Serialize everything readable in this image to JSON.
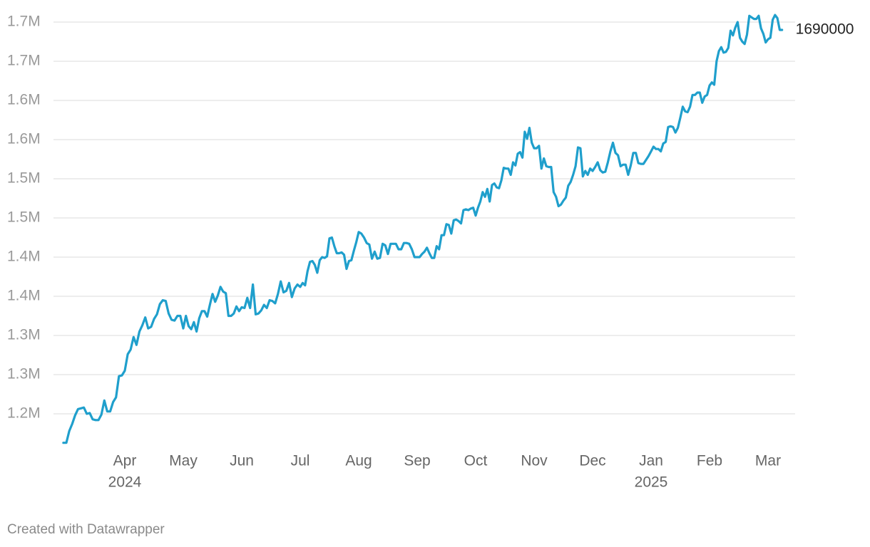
{
  "chart_data": {
    "type": "line",
    "color": "#1f9fcc",
    "grid": true,
    "credit": "Created with Datawrapper",
    "ylim": [
      1160000,
      1720000
    ],
    "yticks": [
      {
        "value": 1200000,
        "label": "1.2M"
      },
      {
        "value": 1250000,
        "label": "1.3M"
      },
      {
        "value": 1300000,
        "label": "1.3M"
      },
      {
        "value": 1350000,
        "label": "1.4M"
      },
      {
        "value": 1400000,
        "label": "1.4M"
      },
      {
        "value": 1450000,
        "label": "1.5M"
      },
      {
        "value": 1500000,
        "label": "1.5M"
      },
      {
        "value": 1550000,
        "label": "1.6M"
      },
      {
        "value": 1600000,
        "label": "1.6M"
      },
      {
        "value": 1650000,
        "label": "1.7M"
      },
      {
        "value": 1700000,
        "label": "1.7M"
      }
    ],
    "categories": [
      null,
      null,
      null,
      null,
      null,
      null,
      null,
      null,
      null,
      null,
      null,
      null,
      null,
      null,
      null,
      null,
      null,
      null,
      null,
      null,
      null,
      "Apr",
      null,
      null,
      null,
      null,
      null,
      null,
      null,
      null,
      null,
      null,
      null,
      null,
      null,
      null,
      null,
      null,
      null,
      null,
      null,
      "May",
      null,
      null,
      null,
      null,
      null,
      null,
      null,
      null,
      null,
      null,
      null,
      null,
      null,
      null,
      null,
      null,
      null,
      null,
      null,
      null,
      null,
      "Jun",
      null,
      null,
      null,
      null,
      null,
      null,
      null,
      null,
      null,
      null,
      null,
      null,
      null,
      null,
      null,
      null,
      null,
      null,
      null,
      null,
      "Jul",
      null,
      null,
      null,
      null,
      null,
      null,
      null,
      null,
      null,
      null,
      null,
      null,
      null,
      null,
      null,
      null,
      null,
      null,
      null,
      null,
      null,
      null,
      null,
      "Aug",
      null,
      null,
      null,
      null,
      null,
      null,
      null,
      null,
      null,
      null,
      null,
      null,
      null,
      null,
      null,
      null,
      null,
      null,
      null,
      null,
      null,
      "Sep",
      null,
      null,
      null,
      null,
      null,
      null,
      null,
      null,
      null,
      null,
      null,
      null,
      null,
      null,
      null,
      null,
      null,
      null,
      null,
      null,
      null,
      null,
      null,
      "Oct",
      null,
      null,
      null,
      null,
      null,
      null,
      null,
      null,
      null,
      null,
      null,
      null,
      null,
      null,
      null,
      null,
      null,
      null,
      null,
      null,
      null,
      null,
      null,
      null,
      "Nov",
      null,
      null,
      null,
      null,
      null,
      null,
      null,
      null,
      null,
      null,
      null,
      null,
      null,
      null,
      null,
      null,
      null,
      null,
      null,
      null,
      null,
      null,
      null,
      "Dec",
      null,
      null,
      null,
      null,
      null,
      null,
      null,
      null,
      null,
      null,
      null,
      null,
      null,
      null,
      null,
      null,
      null,
      null,
      null,
      null,
      null,
      null,
      "Jan",
      null,
      null,
      null,
      null,
      null,
      null,
      null,
      null,
      null,
      null,
      null,
      null,
      null,
      null,
      null,
      null,
      null,
      null,
      null,
      null,
      null,
      null,
      null,
      "Feb",
      null,
      null,
      null,
      null,
      null,
      null,
      null,
      null,
      null,
      null,
      null,
      null,
      null,
      null,
      null,
      null,
      null,
      null,
      null,
      null,
      null,
      null,
      null,
      null,
      "Mar",
      null,
      null,
      null,
      null,
      null,
      null
    ],
    "category_years": [
      null,
      null,
      null,
      null,
      null,
      null,
      null,
      null,
      null,
      null,
      null,
      null,
      null,
      null,
      null,
      null,
      null,
      null,
      null,
      null,
      null,
      "2024",
      null,
      null,
      null,
      null,
      null,
      null,
      null,
      null,
      null,
      null,
      null,
      null,
      null,
      null,
      null,
      null,
      null,
      null,
      null,
      null,
      null,
      null,
      null,
      null,
      null,
      null,
      null,
      null,
      null,
      null,
      null,
      null,
      null,
      null,
      null,
      null,
      null,
      null,
      null,
      null,
      null,
      null,
      null,
      null,
      null,
      null,
      null,
      null,
      null,
      null,
      null,
      null,
      null,
      null,
      null,
      null,
      null,
      null,
      null,
      null,
      null,
      null,
      null,
      null,
      null,
      null,
      null,
      null,
      null,
      null,
      null,
      null,
      null,
      null,
      null,
      null,
      null,
      null,
      null,
      null,
      null,
      null,
      null,
      null,
      null,
      null,
      null,
      null,
      null,
      null,
      null,
      null,
      null,
      null,
      null,
      null,
      null,
      null,
      null,
      null,
      null,
      null,
      null,
      null,
      null,
      null,
      null,
      null,
      null,
      null,
      null,
      null,
      null,
      null,
      null,
      null,
      null,
      null,
      null,
      null,
      null,
      null,
      null,
      null,
      null,
      null,
      null,
      null,
      null,
      null,
      null,
      null,
      null,
      null,
      null,
      null,
      null,
      null,
      null,
      null,
      null,
      null,
      null,
      null,
      null,
      null,
      null,
      null,
      null,
      null,
      null,
      null,
      null,
      null,
      null,
      null,
      null,
      null,
      null,
      null,
      null,
      null,
      null,
      null,
      null,
      null,
      null,
      null,
      null,
      null,
      null,
      null,
      null,
      null,
      null,
      null,
      null,
      null,
      null,
      null,
      null,
      null,
      null,
      null,
      null,
      null,
      null,
      null,
      null,
      null,
      null,
      null,
      null,
      null,
      null,
      null,
      null,
      null,
      null,
      null,
      null,
      null,
      null,
      null,
      "2025",
      null,
      null,
      null,
      null,
      null,
      null,
      null,
      null,
      null,
      null,
      null,
      null,
      null,
      null,
      null,
      null,
      null,
      null,
      null,
      null,
      null,
      null,
      null,
      null,
      null,
      null,
      null,
      null,
      null,
      null,
      null,
      null,
      null,
      null,
      null,
      null,
      null,
      null,
      null,
      null,
      null,
      null,
      null,
      null,
      null,
      null,
      null,
      null,
      null,
      null,
      null,
      null,
      null,
      null,
      null
    ],
    "values": [
      1163000,
      1163000,
      1178000,
      1187000,
      1198000,
      1206000,
      1207000,
      1208000,
      1200000,
      1201000,
      1193000,
      1192000,
      1192000,
      1199000,
      1217000,
      1203000,
      1203000,
      1215000,
      1221000,
      1248000,
      1249000,
      1255000,
      1276000,
      1282000,
      1298000,
      1288000,
      1305000,
      1313000,
      1323000,
      1309000,
      1311000,
      1321000,
      1327000,
      1340000,
      1345000,
      1344000,
      1328000,
      1320000,
      1319000,
      1325000,
      1325000,
      1309000,
      1325000,
      1312000,
      1308000,
      1317000,
      1305000,
      1322000,
      1331000,
      1331000,
      1324000,
      1339000,
      1353000,
      1343000,
      1351000,
      1362000,
      1356000,
      1354000,
      1325000,
      1325000,
      1328000,
      1337000,
      1331000,
      1336000,
      1335000,
      1348000,
      1335000,
      1365000,
      1327000,
      1328000,
      1332000,
      1339000,
      1335000,
      1345000,
      1344000,
      1341000,
      1353000,
      1369000,
      1355000,
      1357000,
      1367000,
      1349000,
      1360000,
      1365000,
      1362000,
      1367000,
      1364000,
      1382000,
      1394000,
      1395000,
      1390000,
      1380000,
      1396000,
      1400000,
      1399000,
      1401000,
      1424000,
      1425000,
      1414000,
      1405000,
      1405000,
      1406000,
      1403000,
      1385000,
      1395000,
      1396000,
      1408000,
      1419000,
      1432000,
      1430000,
      1425000,
      1418000,
      1416000,
      1398000,
      1407000,
      1398000,
      1399000,
      1417000,
      1415000,
      1404000,
      1417000,
      1417000,
      1417000,
      1410000,
      1410000,
      1418000,
      1418000,
      1417000,
      1410000,
      1400000,
      1400000,
      1400000,
      1404000,
      1407000,
      1412000,
      1405000,
      1399000,
      1399000,
      1414000,
      1410000,
      1428000,
      1428000,
      1442000,
      1441000,
      1430000,
      1447000,
      1448000,
      1446000,
      1443000,
      1460000,
      1461000,
      1460000,
      1462000,
      1463000,
      1453000,
      1463000,
      1471000,
      1483000,
      1477000,
      1487000,
      1471000,
      1492000,
      1494000,
      1489000,
      1488000,
      1498000,
      1514000,
      1513000,
      1513000,
      1505000,
      1521000,
      1517000,
      1532000,
      1534000,
      1527000,
      1560000,
      1551000,
      1565000,
      1546000,
      1539000,
      1539000,
      1542000,
      1513000,
      1526000,
      1516000,
      1515000,
      1515000,
      1483000,
      1477000,
      1465000,
      1467000,
      1472000,
      1476000,
      1491000,
      1496000,
      1505000,
      1516000,
      1540000,
      1539000,
      1503000,
      1510000,
      1505000,
      1513000,
      1510000,
      1515000,
      1521000,
      1511000,
      1508000,
      1509000,
      1521000,
      1535000,
      1546000,
      1533000,
      1530000,
      1516000,
      1518000,
      1518000,
      1505000,
      1517000,
      1533000,
      1533000,
      1520000,
      1519000,
      1519000,
      1524000,
      1529000,
      1535000,
      1541000,
      1538000,
      1538000,
      1535000,
      1545000,
      1547000,
      1566000,
      1567000,
      1566000,
      1559000,
      1565000,
      1578000,
      1592000,
      1586000,
      1585000,
      1592000,
      1607000,
      1607000,
      1610000,
      1610000,
      1597000,
      1605000,
      1607000,
      1619000,
      1623000,
      1620000,
      1650000,
      1663000,
      1668000,
      1661000,
      1662000,
      1667000,
      1689000,
      1683000,
      1693000,
      1700000,
      1680000,
      1675000,
      1672000,
      1684000,
      1708000,
      1706000,
      1704000,
      1704000,
      1708000,
      1692000,
      1685000,
      1674000,
      1678000,
      1680000,
      1703000,
      1709000,
      1705000,
      1690000,
      1690000
    ]
  }
}
